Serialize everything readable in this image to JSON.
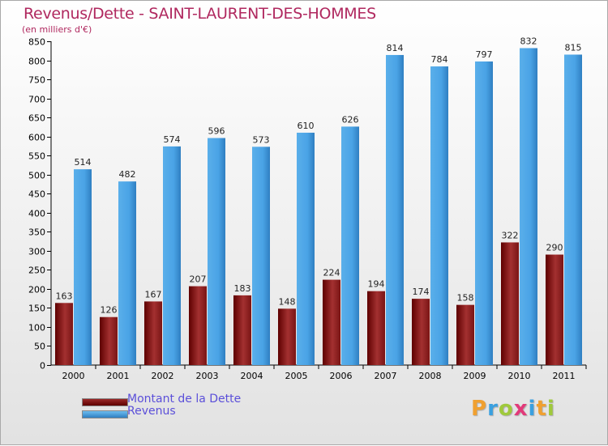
{
  "title": "Revenus/Dette - SAINT-LAURENT-DES-HOMMES",
  "subtitle": "(en milliers d'€)",
  "colors": {
    "dette_dark": "#5e0000",
    "dette_light": "#a33030",
    "revenus_dark": "#2f7fc1",
    "revenus_light": "#5aafea",
    "title": "#b0285f",
    "legend_text": "#5b4fd9"
  },
  "legend": {
    "items": [
      {
        "label": "Montant de la Dette",
        "color": "#7a1010"
      },
      {
        "label": "Revenus",
        "color": "#4aa3e6"
      }
    ]
  },
  "logo": {
    "text": "Proxiti",
    "colors": [
      "#f0a030",
      "#3aa0e0",
      "#9fc93c",
      "#e23a7a",
      "#3aa0e0",
      "#f0a030",
      "#9fc93c"
    ]
  },
  "chart_data": {
    "type": "bar",
    "categories": [
      "2000",
      "2001",
      "2002",
      "2003",
      "2004",
      "2005",
      "2006",
      "2007",
      "2008",
      "2009",
      "2010",
      "2011"
    ],
    "series": [
      {
        "name": "Montant de la Dette",
        "values": [
          163,
          126,
          167,
          207,
          183,
          148,
          224,
          194,
          174,
          158,
          322,
          290
        ]
      },
      {
        "name": "Revenus",
        "values": [
          514,
          482,
          574,
          596,
          573,
          610,
          626,
          814,
          784,
          797,
          832,
          815
        ]
      }
    ],
    "ylim": [
      0,
      850
    ],
    "yticks": [
      0,
      50,
      100,
      150,
      200,
      250,
      300,
      350,
      400,
      450,
      500,
      550,
      600,
      650,
      700,
      750,
      800,
      850
    ],
    "grid": false,
    "legend_position": "bottom-left"
  }
}
